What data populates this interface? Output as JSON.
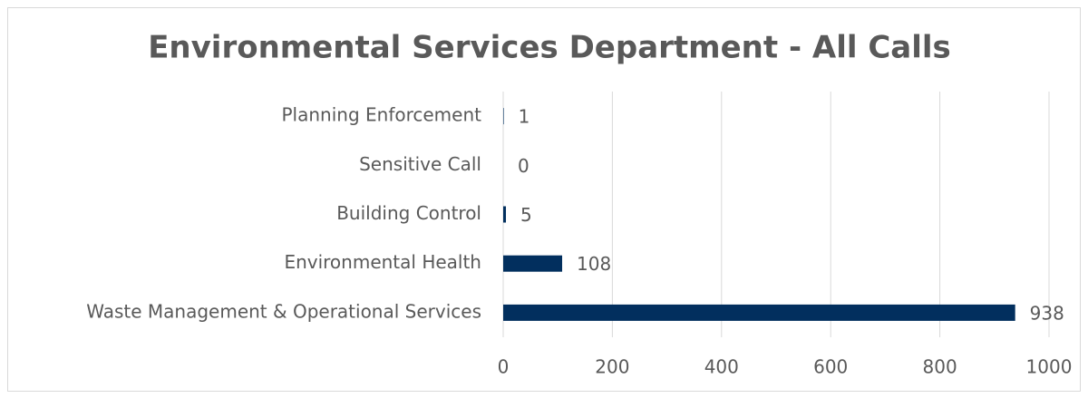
{
  "chart_data": {
    "type": "bar",
    "orientation": "horizontal",
    "title": "Environmental Services Department -  All Calls",
    "categories": [
      "Planning Enforcement",
      "Sensitive Call",
      "Building Control",
      "Environmental Health",
      "Waste Management & Operational Services"
    ],
    "values": [
      1,
      0,
      5,
      108,
      938
    ],
    "color": "#022f5e",
    "xlim": [
      0,
      1000
    ],
    "xticks": [
      0,
      200,
      400,
      600,
      800,
      1000
    ],
    "grid": true
  }
}
